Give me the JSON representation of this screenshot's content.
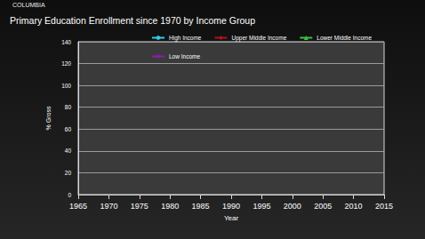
{
  "chart_data": {
    "type": "line",
    "title": "Primary Education Enrollment since 1970 by Income Group",
    "brand": "COLUMBIA",
    "x_label": "Year",
    "y_label": "% Gross",
    "x": [],
    "series": [
      {
        "name": "High Income",
        "color": "#33c6e8",
        "marker": "circle",
        "values": []
      },
      {
        "name": "Upper Middle Income",
        "color": "#b0121b",
        "marker": "diamond",
        "values": []
      },
      {
        "name": "Lower Middle Income",
        "color": "#3fbf3f",
        "marker": "triangle",
        "values": []
      },
      {
        "name": "Low Income",
        "color": "#8a1fa8",
        "marker": "diamond",
        "values": []
      }
    ],
    "xlim": [
      1965,
      2015
    ],
    "xticks": [
      1965,
      1970,
      1975,
      1980,
      1985,
      1990,
      1995,
      2000,
      2005,
      2010,
      2015
    ],
    "ylim": [
      0,
      140
    ],
    "yticks": [
      0,
      20,
      40,
      60,
      80,
      100,
      120,
      140
    ],
    "grid": true,
    "legend": "top"
  }
}
